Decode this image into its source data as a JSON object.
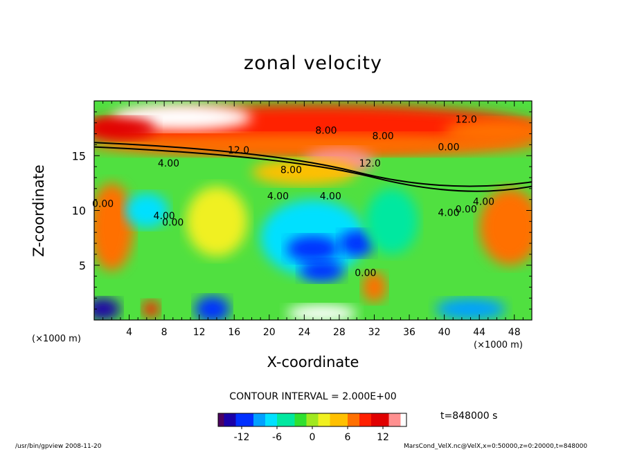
{
  "chart_data": {
    "type": "heatmap",
    "title": "zonal velocity",
    "xlabel": "X-coordinate",
    "ylabel": "Z-coordinate",
    "x_unit_left": "(×1000 m)",
    "x_unit_right": "(×1000 m)",
    "xlim": [
      0,
      50
    ],
    "ylim": [
      0,
      20
    ],
    "xticks": [
      4,
      8,
      12,
      16,
      20,
      24,
      28,
      32,
      36,
      40,
      44,
      48
    ],
    "yticks": [
      5,
      10,
      15
    ],
    "contour_labels": [
      {
        "x": 26.5,
        "y": 17.0,
        "text": "8.00"
      },
      {
        "x": 33.0,
        "y": 16.5,
        "text": "8.00"
      },
      {
        "x": 42.5,
        "y": 18.0,
        "text": "12.0"
      },
      {
        "x": 16.5,
        "y": 15.2,
        "text": "12.0"
      },
      {
        "x": 22.5,
        "y": 13.4,
        "text": "8.00"
      },
      {
        "x": 31.5,
        "y": 14.0,
        "text": "12.0"
      },
      {
        "x": 40.5,
        "y": 15.5,
        "text": "0.00"
      },
      {
        "x": 8.5,
        "y": 14.0,
        "text": "4.00"
      },
      {
        "x": 21.0,
        "y": 11.0,
        "text": "4.00"
      },
      {
        "x": 27.0,
        "y": 11.0,
        "text": "4.00"
      },
      {
        "x": 1.0,
        "y": 10.3,
        "text": "0.00"
      },
      {
        "x": 8.0,
        "y": 9.2,
        "text": "4.00"
      },
      {
        "x": 9.0,
        "y": 8.6,
        "text": "0.00"
      },
      {
        "x": 40.5,
        "y": 9.5,
        "text": "4.00"
      },
      {
        "x": 42.5,
        "y": 9.8,
        "text": "0.00"
      },
      {
        "x": 44.5,
        "y": 10.5,
        "text": "4.00"
      },
      {
        "x": 31.0,
        "y": 4.0,
        "text": "0.00"
      }
    ],
    "contour_interval_text": "CONTOUR INTERVAL = 2.000E+00",
    "colorbar": {
      "min": -16,
      "max": 16,
      "ticks": [
        -12,
        -6,
        0,
        6,
        12
      ]
    },
    "time_text": "t=848000  s"
  },
  "footer": {
    "left": "/usr/bin/gpview  2008-11-20",
    "right": "MarsCond_VelX.nc@VelX,x=0:50000,z=0:20000,t=848000"
  }
}
